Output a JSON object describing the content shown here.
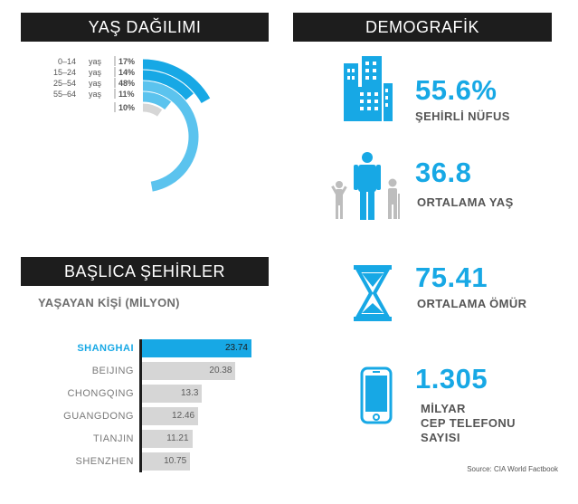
{
  "age_section": {
    "title": "YAŞ DAĞILIMI"
  },
  "demo_section": {
    "title": "DEMOGRAFİK"
  },
  "cities_section": {
    "title": "BAŞLICA ŞEHİRLER",
    "subtitle": "YAŞAYAN KİŞİ (MİLYON)"
  },
  "stats": [
    {
      "value": "55.6%",
      "label": "ŞEHİRLİ NÜFUS",
      "icon": "buildings-icon"
    },
    {
      "value": "36.8",
      "label": "ORTALAMA YAŞ",
      "icon": "people-icon"
    },
    {
      "value": "75.41",
      "label": "ORTALAMA ÖMÜR",
      "icon": "hourglass-icon"
    },
    {
      "value": "1.305",
      "label_lines": [
        "MİLYAR",
        "CEP TELEFONU",
        "SAYISI"
      ],
      "icon": "phone-icon"
    }
  ],
  "source": "Source: CIA World Factbook",
  "colors": {
    "accent": "#17a8e5",
    "light_blue": "#5bc3ee",
    "gray": "#d6d6d6",
    "header": "#1d1d1d"
  },
  "chart_data": [
    {
      "type": "radial-bar",
      "unit_word": "yaş",
      "categories": [
        "0–14",
        "15–24",
        "25–54",
        "55–64",
        ""
      ],
      "values": [
        17,
        14,
        48,
        11,
        10
      ],
      "value_labels": [
        "17%",
        "14%",
        "48%",
        "11%",
        "10%"
      ]
    },
    {
      "type": "bar",
      "orientation": "horizontal",
      "categories": [
        "SHANGHAI",
        "BEIJING",
        "CHONGQING",
        "GUANGDONG",
        "TIANJIN",
        "SHENZHEN"
      ],
      "values": [
        23.74,
        20.38,
        13.3,
        12.46,
        11.21,
        10.75
      ],
      "value_labels": [
        "23.74",
        "20.38",
        "13.3",
        "12.46",
        "11.21",
        "10.75"
      ],
      "highlight": "SHANGHAI",
      "ylabel": "YAŞAYAN KİŞİ (MİLYON)"
    }
  ]
}
